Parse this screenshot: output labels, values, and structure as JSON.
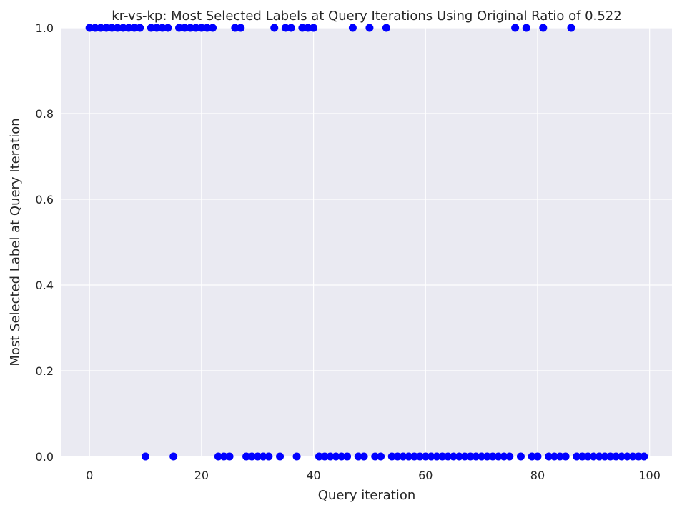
{
  "chart_data": {
    "type": "scatter",
    "title": "kr-vs-kp: Most Selected Labels at Query Iterations Using Original Ratio of 0.522",
    "xlabel": "Query iteration",
    "ylabel": "Most Selected Label at Query Iteration",
    "xlim": [
      -5,
      104
    ],
    "ylim": [
      0,
      1
    ],
    "x_ticks": [
      0,
      20,
      40,
      60,
      80,
      100
    ],
    "y_ticks": [
      0.0,
      0.2,
      0.4,
      0.6,
      0.8,
      1.0
    ],
    "x_tick_labels": [
      "0",
      "20",
      "40",
      "60",
      "80",
      "100"
    ],
    "y_tick_labels": [
      "0.0",
      "0.2",
      "0.4",
      "0.6",
      "0.8",
      "1.0"
    ],
    "grid": true,
    "legend": "none",
    "colors": {
      "background": "#eaeaf2",
      "grid": "#ffffff",
      "marker": "#0000ff"
    },
    "series": [
      {
        "x": [
          0,
          1,
          2,
          3,
          4,
          5,
          6,
          7,
          8,
          9,
          10,
          11,
          12,
          13,
          14,
          15,
          16,
          17,
          18,
          19,
          20,
          21,
          22,
          23,
          24,
          25,
          26,
          27,
          28,
          29,
          30,
          31,
          32,
          33,
          34,
          35,
          36,
          37,
          38,
          39,
          40,
          41,
          42,
          43,
          44,
          45,
          46,
          47,
          48,
          49,
          50,
          51,
          52,
          53,
          54,
          55,
          56,
          57,
          58,
          59,
          60,
          61,
          62,
          63,
          64,
          65,
          66,
          67,
          68,
          69,
          70,
          71,
          72,
          73,
          74,
          75,
          76,
          77,
          78,
          79,
          80,
          81,
          82,
          83,
          84,
          85,
          86,
          87,
          88,
          89,
          90,
          91,
          92,
          93,
          94,
          95,
          96,
          97,
          98,
          99
        ],
        "y": [
          1,
          1,
          1,
          1,
          1,
          1,
          1,
          1,
          1,
          1,
          0,
          1,
          1,
          1,
          1,
          0,
          1,
          1,
          1,
          1,
          1,
          1,
          1,
          0,
          0,
          0,
          1,
          1,
          0,
          0,
          0,
          0,
          0,
          1,
          0,
          1,
          1,
          0,
          1,
          1,
          1,
          0,
          0,
          0,
          0,
          0,
          0,
          1,
          0,
          0,
          1,
          0,
          0,
          1,
          0,
          0,
          0,
          0,
          0,
          0,
          0,
          0,
          0,
          0,
          0,
          0,
          0,
          0,
          0,
          0,
          0,
          0,
          0,
          0,
          0,
          0,
          1,
          0,
          1,
          0,
          0,
          1,
          0,
          0,
          0,
          0,
          1,
          0,
          0,
          0,
          0,
          0,
          0,
          0,
          0,
          0,
          0,
          0,
          0,
          0
        ]
      }
    ]
  }
}
